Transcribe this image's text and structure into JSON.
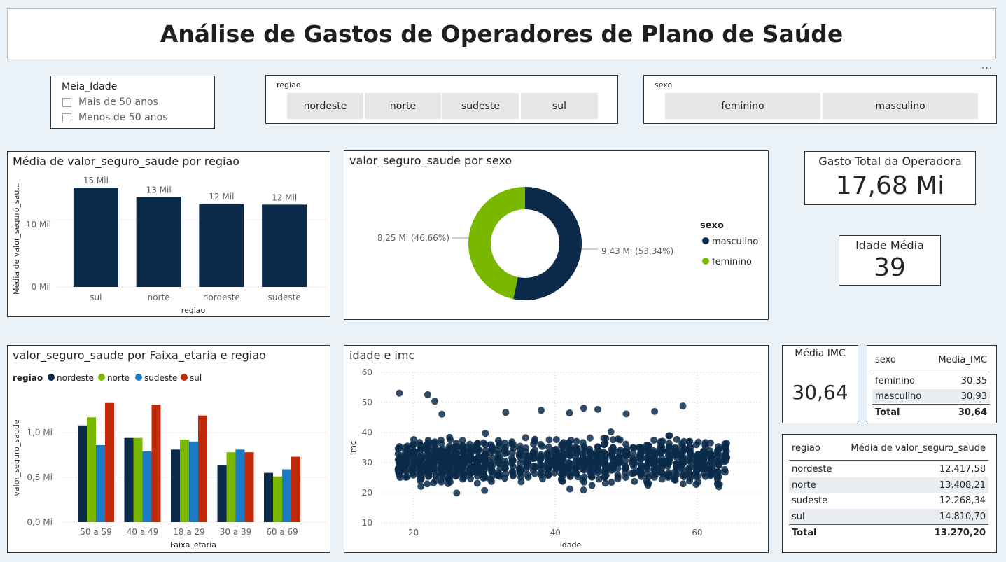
{
  "header": {
    "title": "Análise de Gastos de Operadores de Plano de Saúde",
    "more_label": "..."
  },
  "slicers": {
    "meia_idade": {
      "title": "Meia_Idade",
      "options": [
        "Mais de 50 anos",
        "Menos de 50 anos"
      ]
    },
    "regiao": {
      "title": "regiao",
      "options": [
        "nordeste",
        "norte",
        "sudeste",
        "sul"
      ]
    },
    "sexo": {
      "title": "sexo",
      "options": [
        "feminino",
        "masculino"
      ]
    }
  },
  "kpis": {
    "gasto_total": {
      "label": "Gasto Total da Operadora",
      "value": "17,68 Mi"
    },
    "idade_media": {
      "label": "Idade Média",
      "value": "39"
    },
    "media_imc": {
      "label": "Média IMC",
      "value": "30,64"
    }
  },
  "colors": {
    "navy": "#0b2a4a",
    "green": "#7ab800",
    "blue": "#1a7ac4",
    "red": "#c02a0a"
  },
  "charts": {
    "bar_regiao": {
      "title": "Média de valor_seguro_saude por regiao",
      "xlabel": "regiao",
      "ylabel": "Média de valor_seguro_sau...",
      "ytick_labels": [
        "0 Mil",
        "10 Mil"
      ]
    },
    "donut_sexo": {
      "title": "valor_seguro_saude por sexo",
      "legend_title": "sexo",
      "label_feminino": "8,25 Mi (46,66%)",
      "label_masculino": "9,43 Mi (53,34%)"
    },
    "faixa_regiao": {
      "title": "valor_seguro_saude por Faixa_etaria e regiao",
      "legend_title": "regiao",
      "xlabel": "Faixa_etaria",
      "ylabel": "valor_seguro_saude",
      "ytick_labels": [
        "0,0 Mi",
        "0,5 Mi",
        "1,0 Mi"
      ]
    },
    "scatter": {
      "title": "idade e imc",
      "xlabel": "idade",
      "ylabel": "imc"
    }
  },
  "tables": {
    "imc_sexo": {
      "headers": [
        "sexo",
        "Media_IMC"
      ],
      "rows": [
        [
          "feminino",
          "30,35"
        ],
        [
          "masculino",
          "30,93"
        ]
      ],
      "total": [
        "Total",
        "30,64"
      ]
    },
    "valor_regiao": {
      "headers": [
        "regiao",
        "Média de valor_seguro_saude"
      ],
      "rows": [
        [
          "nordeste",
          "12.417,58"
        ],
        [
          "norte",
          "13.408,21"
        ],
        [
          "sudeste",
          "12.268,34"
        ],
        [
          "sul",
          "14.810,70"
        ]
      ],
      "total": [
        "Total",
        "13.270,20"
      ]
    }
  },
  "chart_data": [
    {
      "type": "bar",
      "title": "Média de valor_seguro_saude por regiao",
      "categories": [
        "sul",
        "norte",
        "nordeste",
        "sudeste"
      ],
      "values": [
        14810.7,
        13408.21,
        12417.58,
        12268.34
      ],
      "data_labels": [
        "15 Mil",
        "13 Mil",
        "12 Mil",
        "12 Mil"
      ],
      "xlabel": "regiao",
      "ylabel": "Média de valor_seguro_sau...",
      "ylim": [
        0,
        17000
      ]
    },
    {
      "type": "pie",
      "title": "valor_seguro_saude por sexo",
      "categories": [
        "masculino",
        "feminino"
      ],
      "values": [
        9.43,
        8.25
      ],
      "percent": [
        53.34,
        46.66
      ]
    },
    {
      "type": "bar",
      "title": "valor_seguro_saude por Faixa_etaria e regiao",
      "categories": [
        "50 a 59",
        "40 a 49",
        "18 a 29",
        "30 a 39",
        "60 a 69"
      ],
      "series": [
        {
          "name": "nordeste",
          "values": [
            1.08,
            0.94,
            0.81,
            0.64,
            0.55
          ]
        },
        {
          "name": "norte",
          "values": [
            1.17,
            0.94,
            0.92,
            0.78,
            0.51
          ]
        },
        {
          "name": "sudeste",
          "values": [
            0.86,
            0.79,
            0.9,
            0.81,
            0.59
          ]
        },
        {
          "name": "sul",
          "values": [
            1.33,
            1.31,
            1.19,
            0.78,
            0.73
          ]
        }
      ],
      "xlabel": "Faixa_etaria",
      "ylabel": "valor_seguro_saude",
      "ylim": [
        0,
        1.5
      ]
    },
    {
      "type": "scatter",
      "title": "idade e imc",
      "xlabel": "idade",
      "ylabel": "imc",
      "xlim": [
        15,
        69
      ],
      "ylim": [
        10,
        60
      ],
      "xticks": [
        20,
        40,
        60
      ],
      "yticks": [
        10,
        20,
        30,
        40,
        50,
        60
      ],
      "x_range": [
        18,
        64
      ],
      "y_range": [
        16,
        53
      ],
      "outliers": [
        [
          18,
          53.1
        ],
        [
          22,
          52.6
        ],
        [
          23,
          50.4
        ],
        [
          58,
          48.8
        ],
        [
          44,
          48.1
        ],
        [
          46,
          47.7
        ],
        [
          24,
          46.1
        ],
        [
          33,
          46.7
        ],
        [
          38,
          47.4
        ],
        [
          42,
          46.5
        ],
        [
          50,
          46.2
        ],
        [
          54,
          47.0
        ]
      ]
    }
  ]
}
